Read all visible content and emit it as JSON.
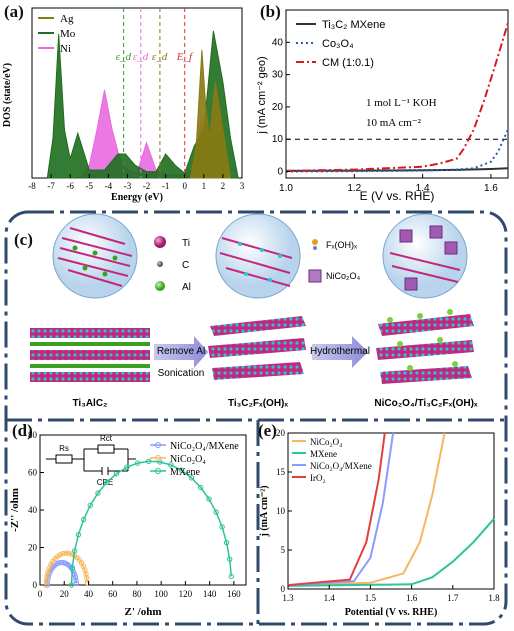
{
  "panels": {
    "a": {
      "label": "(a)"
    },
    "b": {
      "label": "(b)"
    },
    "c": {
      "label": "(c)"
    },
    "d": {
      "label": "(d)"
    },
    "e": {
      "label": "(e)"
    }
  },
  "chart_data": [
    {
      "id": "a",
      "type": "area",
      "ylabel": "DOS (state/eV)",
      "xlabel": "Energy (eV)",
      "xlim": [
        -8,
        3
      ],
      "xticks": [
        "-8",
        "-7",
        "-6",
        "-5",
        "-4",
        "-3",
        "-2",
        "-1",
        "0",
        "1",
        "2",
        "3"
      ],
      "legend": [
        "Ag",
        "Mo",
        "Ni"
      ],
      "legend_position": "top-left",
      "annotations": [
        "ε_d",
        "ε_d",
        "ε_d",
        "E_f"
      ],
      "series": [
        {
          "name": "Ag",
          "color": "#8a7a12",
          "x": [
            0.3,
            0.6,
            0.9,
            1.1,
            1.3,
            1.6,
            2.0,
            2.4
          ],
          "y": [
            0,
            0.2,
            0.8,
            0.45,
            0.25,
            0.6,
            0.3,
            0
          ]
        },
        {
          "name": "Mo",
          "color": "#1e6e1e",
          "x": [
            -7.2,
            -6.9,
            -6.6,
            -6.3,
            -6.0,
            -5.6,
            -5.0,
            -4.2,
            -3.5,
            -3.1,
            -2.6,
            -2.0,
            -1.5,
            -1.0,
            -0.5,
            0.0,
            0.5,
            1.0,
            1.5,
            2.0,
            2.4,
            2.8
          ],
          "y": [
            0,
            0.25,
            0.9,
            0.3,
            0.12,
            0.28,
            0.05,
            0.05,
            0.15,
            0.15,
            0.08,
            0.04,
            0.04,
            0.15,
            0.08,
            0.03,
            0.2,
            0.3,
            0.92,
            0.6,
            0.25,
            0
          ],
          "ylim": [
            0,
            1
          ]
        },
        {
          "name": "Ni",
          "color": "#e86ae0",
          "x": [
            -5.5,
            -5.0,
            -4.6,
            -4.2,
            -3.8,
            -3.4,
            -3.0,
            -2.5,
            -2.0,
            -1.5,
            -1.0,
            -0.5,
            0.0,
            0.4,
            0.9,
            1.3,
            1.8
          ],
          "y": [
            0,
            0.08,
            0.3,
            0.55,
            0.3,
            0.12,
            0.05,
            0.03,
            0.22,
            0.05,
            0.02,
            0.02,
            0.02,
            0.05,
            0.38,
            0.05,
            0
          ]
        }
      ],
      "vlines": [
        {
          "x": -3.2,
          "color": "#2a9e2a",
          "label": "ε_d"
        },
        {
          "x": -2.3,
          "color": "#e86ae0",
          "label": "ε_d"
        },
        {
          "x": -1.3,
          "color": "#8a7a12",
          "label": "ε_d"
        },
        {
          "x": 0.0,
          "color": "#e03030",
          "label": "E_f"
        }
      ]
    },
    {
      "id": "b",
      "type": "line",
      "xlabel": "E (V vs. RHE)",
      "ylabel": "j (mA cm⁻² geo)",
      "xlim": [
        1.0,
        1.65
      ],
      "ylim": [
        -2,
        50
      ],
      "xticks": [
        "1.0",
        "1.2",
        "1.4",
        "1.6"
      ],
      "yticks": [
        "0",
        "10",
        "20",
        "30",
        "40"
      ],
      "legend_position": "top-left",
      "annotations": [
        "1 mol L⁻¹ KOH",
        "10 mA cm⁻²"
      ],
      "series": [
        {
          "name": "Ti₃C₂ MXene",
          "color": "#333333",
          "style": "solid",
          "x": [
            1.0,
            1.2,
            1.4,
            1.5,
            1.6,
            1.65
          ],
          "y": [
            0.2,
            0.3,
            0.4,
            0.5,
            0.8,
            1.0
          ]
        },
        {
          "name": "Co₃O₄",
          "color": "#1f5fbf",
          "style": "dot",
          "x": [
            1.0,
            1.2,
            1.4,
            1.5,
            1.55,
            1.6,
            1.62,
            1.65
          ],
          "y": [
            0,
            0.1,
            0.3,
            0.6,
            1.0,
            3.0,
            6,
            13
          ]
        },
        {
          "name": "CM (1:0.1)",
          "color": "#d01f1f",
          "style": "dashdot",
          "x": [
            1.0,
            1.2,
            1.4,
            1.45,
            1.5,
            1.52,
            1.55,
            1.58,
            1.61,
            1.65
          ],
          "y": [
            0.2,
            0.6,
            1.5,
            2.5,
            4.0,
            7,
            13,
            22,
            32,
            46
          ]
        }
      ],
      "hline": {
        "y": 10,
        "style": "dashed",
        "color": "#000000"
      }
    },
    {
      "id": "d",
      "type": "line",
      "xlabel": "Z' /ohm",
      "ylabel": "-Z'' /ohm",
      "xlim": [
        0,
        170
      ],
      "ylim": [
        0,
        80
      ],
      "xticks": [
        "0",
        "20",
        "40",
        "60",
        "80",
        "100",
        "120",
        "140",
        "160"
      ],
      "yticks": [
        "0",
        "20",
        "40",
        "60",
        "80"
      ],
      "legend_position": "top-right",
      "annotations": [
        "Rs",
        "Rct",
        "CPE"
      ],
      "series": [
        {
          "name": "NiCo₂O₄/MXene",
          "color": "#8a9cff",
          "center": 18,
          "radius": 12
        },
        {
          "name": "NiCo₂O₄",
          "color": "#f4b860",
          "center": 22,
          "radius": 17
        },
        {
          "name": "MXene",
          "color": "#2fc39a",
          "center": 92,
          "radius": 66
        }
      ]
    },
    {
      "id": "e",
      "type": "line",
      "xlabel": "Potential (V vs. RHE)",
      "ylabel": "j (mA cm⁻²)",
      "xlim": [
        1.3,
        1.8
      ],
      "ylim": [
        0,
        20
      ],
      "xticks": [
        "1.3",
        "1.4",
        "1.5",
        "1.6",
        "1.7",
        "1.8"
      ],
      "yticks": [
        "0",
        "5",
        "10",
        "15",
        "20"
      ],
      "legend_position": "top-left",
      "series": [
        {
          "name": "NiCo₂O₄",
          "color": "#f4b860",
          "x": [
            1.3,
            1.5,
            1.58,
            1.62,
            1.65,
            1.68
          ],
          "y": [
            0.5,
            0.8,
            2,
            6,
            12,
            20
          ]
        },
        {
          "name": "MXene",
          "color": "#2fc39a",
          "x": [
            1.3,
            1.6,
            1.65,
            1.7,
            1.75,
            1.8
          ],
          "y": [
            0.4,
            0.6,
            1.5,
            3.5,
            6,
            9
          ]
        },
        {
          "name": "NiCo₂O₄/MXene",
          "color": "#8a9cff",
          "x": [
            1.3,
            1.46,
            1.5,
            1.53,
            1.555
          ],
          "y": [
            0.5,
            1,
            4,
            11,
            20
          ]
        },
        {
          "name": "IrO₂",
          "color": "#e04040",
          "x": [
            1.3,
            1.45,
            1.49,
            1.52,
            1.535
          ],
          "y": [
            0.5,
            1.2,
            6,
            14,
            20
          ]
        }
      ]
    }
  ],
  "schematic": {
    "legend_atoms": [
      "Ti",
      "C",
      "Al"
    ],
    "legend_f": "Fₓ(OH)ₓ",
    "legend_spinel": "NiCo₂O₄",
    "arrow1_top": "Remove Al",
    "arrow1_bottom": "Sonication",
    "arrow2_top": "Hydrothermal",
    "label1": "Ti₃AlC₂",
    "label2": "Ti₃C₂Fₓ(OH)ₓ",
    "label3": "NiCo₂O₄/Ti₃C₂Fₓ(OH)ₓ"
  }
}
